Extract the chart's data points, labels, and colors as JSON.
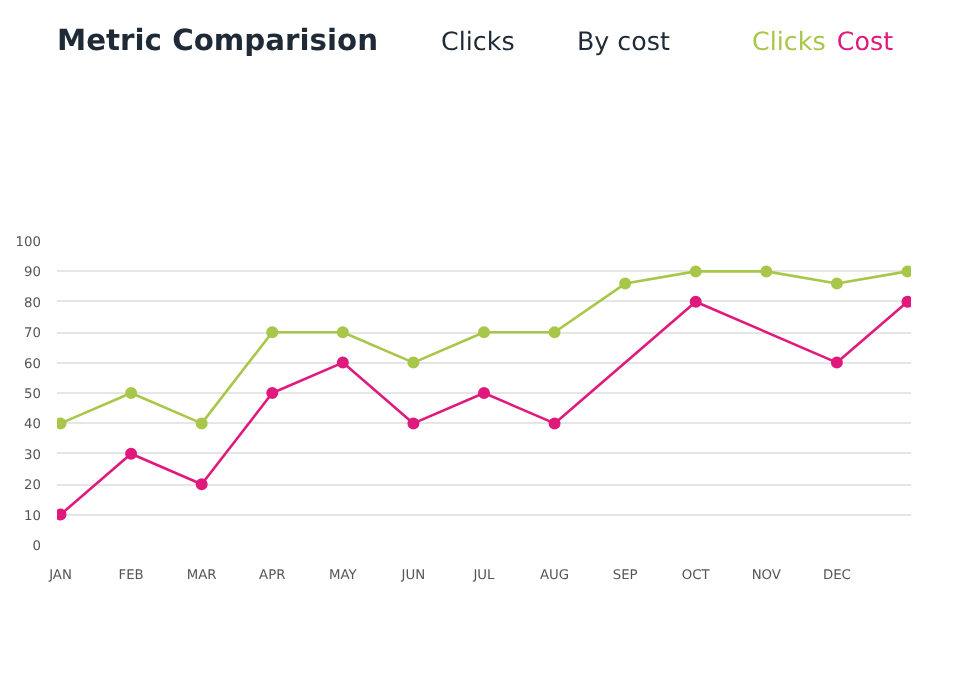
{
  "chart_data": {
    "type": "line",
    "title": "Metric Comparision",
    "annotations": [
      "Clicks",
      "By cost"
    ],
    "categories": [
      "JAN",
      "FEB",
      "MAR",
      "APR",
      "MAY",
      "JUN",
      "JUL",
      "AUG",
      "SEP",
      "OCT",
      "NOV",
      "DEC",
      null
    ],
    "ylim": [
      0,
      100
    ],
    "yticks": [
      0,
      10,
      20,
      30,
      40,
      50,
      60,
      70,
      80,
      90,
      100
    ],
    "grid": "y",
    "marker": "circle",
    "series": [
      {
        "name": "Clicks",
        "color": "#a8c74a",
        "values": [
          40,
          50,
          40,
          70,
          70,
          60,
          70,
          70,
          86,
          90,
          90,
          86,
          90
        ]
      },
      {
        "name": "Cost",
        "color": "#e0197d",
        "values": [
          10,
          30,
          20,
          50,
          60,
          40,
          50,
          40,
          null,
          80,
          null,
          60,
          80
        ]
      }
    ]
  }
}
